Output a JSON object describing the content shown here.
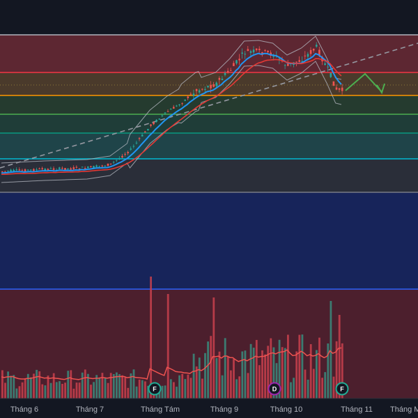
{
  "chart_data": {
    "type": "candlestick",
    "x_ticks": [
      "Tháng 6",
      "Tháng 7",
      "Tháng Tám",
      "Tháng 9",
      "Tháng 10",
      "Tháng 11",
      "Tháng M"
    ],
    "event_markers": [
      {
        "label": "F",
        "month": "Tháng Tám",
        "color": "#22ab94"
      },
      {
        "label": "D",
        "month": "Tháng 10",
        "color": "#9c27b0"
      },
      {
        "label": "F",
        "month": "Tháng 11",
        "color": "#22ab94"
      }
    ],
    "fib_levels": [
      {
        "color": "#b2b5be",
        "fill": "#5d2732"
      },
      {
        "color": "#f23645",
        "fill": "#4a3a2b"
      },
      {
        "color": "#ff9800",
        "fill": "#253b2f"
      },
      {
        "color": "#4caf50",
        "fill": "#1f3d38"
      },
      {
        "color": "#089981",
        "fill": "#1f4449"
      },
      {
        "color": "#00bcd4",
        "fill": "#2a2e39"
      },
      {
        "color": "#787b86",
        "fill": "#17245a"
      },
      {
        "color": "#2962ff",
        "fill": "#4c1f2d"
      }
    ],
    "series_colors": {
      "up": "#26a69a",
      "down": "#ef5350",
      "ema_fast": "#2196f3",
      "ema_slow": "#e53935",
      "bollinger": "#b2b5be",
      "trendline": "#9598a1",
      "forecast_arrow": "#4caf50",
      "volume_ma": "#ef5350"
    }
  }
}
